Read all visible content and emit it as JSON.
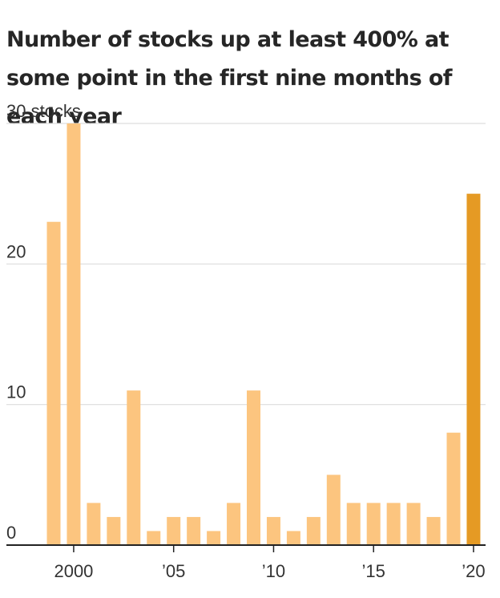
{
  "title": "Number of stocks up at least 400% at some point in the first nine months of each year",
  "colors": {
    "bar": "#FCC57F",
    "highlight": "#E59A24",
    "grid": "#DDDDDD",
    "axis": "#222222"
  },
  "chart_data": {
    "type": "bar",
    "title": "Number of stocks up at least 400% at some point in the first nine months of each year",
    "xlabel": "",
    "ylabel": "",
    "categories": [
      "1999",
      "2000",
      "2001",
      "2002",
      "2003",
      "2004",
      "2005",
      "2006",
      "2007",
      "2008",
      "2009",
      "2010",
      "2011",
      "2012",
      "2013",
      "2014",
      "2015",
      "2016",
      "2017",
      "2018",
      "2019",
      "2020"
    ],
    "values": [
      23,
      30,
      3,
      2,
      11,
      1,
      2,
      2,
      1,
      3,
      11,
      2,
      1,
      2,
      5,
      3,
      3,
      3,
      3,
      2,
      8,
      25
    ],
    "highlight": "2020",
    "ylim": [
      0,
      30
    ],
    "y_ticks": [
      {
        "value": 0,
        "label": "0"
      },
      {
        "value": 10,
        "label": "10"
      },
      {
        "value": 20,
        "label": "20"
      },
      {
        "value": 30,
        "label": "30 stocks"
      }
    ],
    "x_ticks": [
      {
        "category": "2000",
        "label": "2000"
      },
      {
        "category": "2005",
        "label": "’05"
      },
      {
        "category": "2010",
        "label": "’10"
      },
      {
        "category": "2015",
        "label": "’15"
      },
      {
        "category": "2020",
        "label": "’20"
      }
    ],
    "grid": true,
    "legend": "none"
  }
}
